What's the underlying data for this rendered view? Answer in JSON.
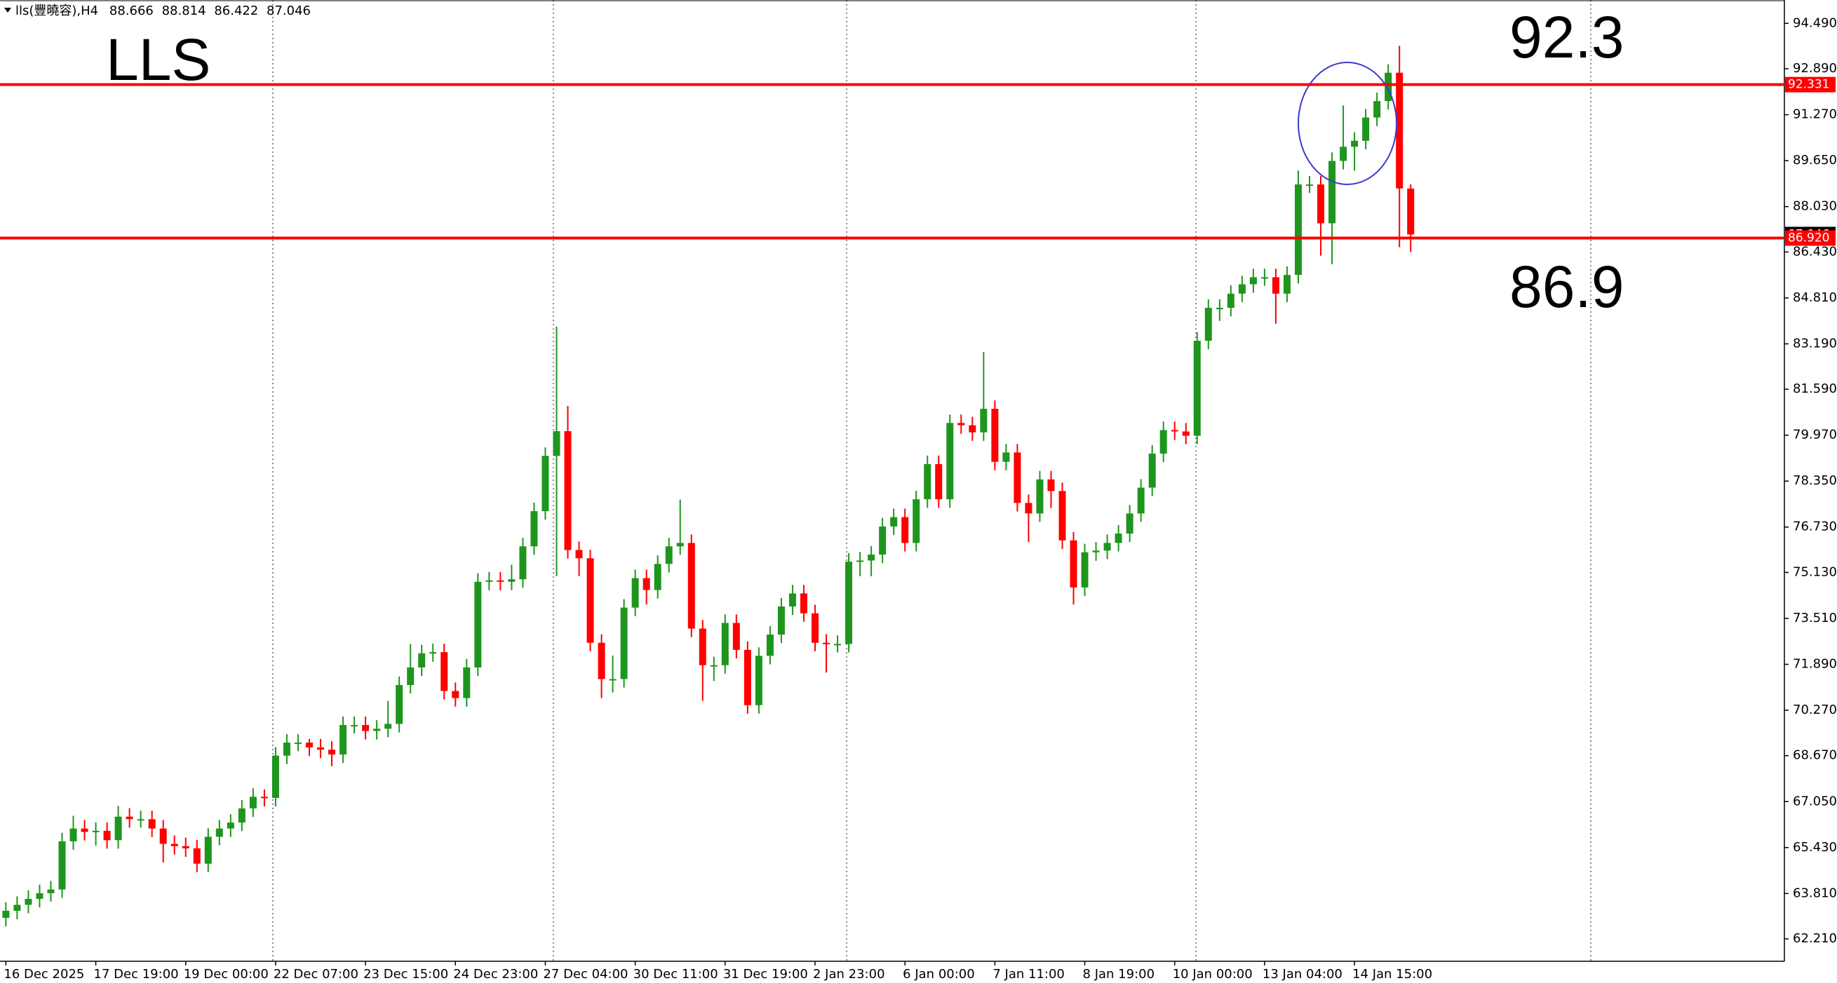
{
  "chart_data": {
    "type": "candlestick",
    "symbol": "lls(豐曉容),H4",
    "title": "LLS",
    "annotations": [
      "92.3",
      "86.9"
    ],
    "up_color": "#1e961e",
    "down_color": "#ff0000",
    "level_color": "#ff0000",
    "ylim": [
      61.42,
      95.24
    ],
    "yticks": [
      {
        "value": 94.49,
        "label": "94.490"
      },
      {
        "value": 92.89,
        "label": "92.890"
      },
      {
        "value": 91.27,
        "label": "91.270"
      },
      {
        "value": 89.65,
        "label": "89.650"
      },
      {
        "value": 88.03,
        "label": "88.030"
      },
      {
        "value": 86.43,
        "label": "86.430"
      },
      {
        "value": 84.81,
        "label": "84.810"
      },
      {
        "value": 83.19,
        "label": "83.190"
      },
      {
        "value": 81.59,
        "label": "81.590"
      },
      {
        "value": 79.97,
        "label": "79.970"
      },
      {
        "value": 78.35,
        "label": "78.350"
      },
      {
        "value": 76.73,
        "label": "76.730"
      },
      {
        "value": 75.13,
        "label": "75.130"
      },
      {
        "value": 73.51,
        "label": "73.510"
      },
      {
        "value": 71.89,
        "label": "71.890"
      },
      {
        "value": 70.27,
        "label": "70.270"
      },
      {
        "value": 68.67,
        "label": "68.670"
      },
      {
        "value": 67.05,
        "label": "67.050"
      },
      {
        "value": 65.43,
        "label": "65.430"
      },
      {
        "value": 63.81,
        "label": "63.810"
      },
      {
        "value": 62.21,
        "label": "62.210"
      }
    ],
    "levels": [
      92.331,
      {
        "value": 86.92,
        "label": "86.920"
      }
    ],
    "categories": [
      "16 Dec 2025",
      null,
      null,
      null,
      null,
      null,
      null,
      null,
      "17 Dec 19:00",
      null,
      null,
      null,
      null,
      null,
      null,
      null,
      "19 Dec 00:00",
      null,
      null,
      null,
      null,
      null,
      null,
      null,
      "22 Dec 07:00",
      null,
      null,
      null,
      null,
      null,
      null,
      null,
      "23 Dec 15:00",
      null,
      null,
      null,
      null,
      null,
      null,
      null,
      "24 Dec 23:00",
      null,
      null,
      null,
      null,
      null,
      null,
      null,
      "27 Dec 04:00",
      null,
      null,
      null,
      null,
      null,
      null,
      null,
      "30 Dec 11:00",
      null,
      null,
      null,
      null,
      null,
      null,
      null,
      "31 Dec 19:00",
      null,
      null,
      null,
      null,
      null,
      null,
      null,
      "2 Jan 23:00",
      null,
      null,
      null,
      null,
      null,
      null,
      null,
      "6 Jan 00:00",
      null,
      null,
      null,
      null,
      null,
      null,
      null,
      "7 Jan 11:00",
      null,
      null,
      null,
      null,
      null,
      null,
      null,
      "8 Jan 19:00",
      null,
      null,
      null,
      null,
      null,
      null,
      null,
      "10 Jan 00:00",
      null,
      null,
      null,
      null,
      null,
      null,
      null,
      "13 Jan 04:00",
      null,
      null,
      null,
      null,
      null,
      null,
      null,
      "14 Jan 15:00",
      null,
      null,
      null,
      null,
      null
    ],
    "open": [
      62.95,
      63.2,
      63.41,
      63.62,
      63.82,
      63.95,
      65.65,
      66.1,
      65.98,
      66.02,
      65.69,
      66.52,
      66.43,
      66.43,
      66.1,
      65.56,
      65.48,
      65.4,
      64.86,
      65.81,
      66.1,
      66.31,
      66.81,
      67.22,
      67.18,
      68.67,
      69.13,
      69.13,
      68.96,
      68.88,
      68.71,
      69.75,
      69.75,
      69.54,
      69.62,
      69.79,
      71.16,
      71.78,
      72.28,
      72.32,
      70.95,
      70.7,
      71.78,
      74.8,
      74.85,
      74.8,
      74.89,
      76.05,
      77.29,
      79.24,
      80.11,
      75.92,
      75.63,
      72.65,
      71.37,
      71.37,
      73.89,
      74.93,
      74.51,
      75.43,
      76.05,
      76.17,
      73.15,
      71.86,
      71.86,
      73.35,
      72.4,
      70.45,
      72.19,
      72.94,
      73.93,
      74.39,
      73.69,
      72.65,
      72.61,
      72.61,
      75.51,
      75.55,
      75.76,
      76.75,
      77.08,
      76.17,
      77.71,
      78.95,
      77.71,
      80.4,
      80.32,
      80.07,
      80.9,
      79.03,
      79.36,
      77.58,
      77.21,
      78.41,
      78.0,
      76.26,
      74.6,
      75.84,
      75.9,
      76.17,
      76.5,
      77.21,
      78.12,
      79.32,
      80.15,
      80.1,
      79.95,
      83.3,
      84.46,
      84.46,
      84.96,
      85.29,
      85.54,
      85.54,
      84.96,
      85.62,
      88.81,
      88.81,
      87.44,
      89.64,
      90.14,
      90.35,
      91.17,
      91.75,
      92.75,
      88.666
    ],
    "high": [
      63.5,
      63.71,
      63.92,
      64.12,
      64.25,
      65.95,
      66.55,
      66.4,
      66.32,
      66.32,
      66.9,
      66.82,
      66.73,
      66.73,
      66.4,
      65.86,
      65.78,
      65.7,
      66.11,
      66.4,
      66.61,
      67.11,
      67.52,
      67.48,
      68.97,
      69.43,
      69.43,
      69.26,
      69.26,
      69.18,
      70.05,
      70.05,
      70.05,
      69.92,
      70.6,
      71.46,
      72.6,
      72.58,
      72.62,
      72.62,
      71.25,
      72.08,
      75.1,
      75.15,
      75.15,
      75.4,
      76.35,
      77.59,
      79.54,
      83.8,
      81.0,
      76.22,
      75.93,
      72.95,
      72.2,
      74.19,
      75.23,
      75.23,
      75.73,
      76.35,
      77.7,
      76.47,
      73.45,
      72.16,
      73.65,
      73.65,
      72.7,
      72.49,
      73.24,
      74.23,
      74.69,
      74.69,
      73.99,
      72.95,
      72.91,
      75.81,
      75.85,
      76.06,
      77.05,
      77.38,
      77.38,
      78.01,
      79.25,
      79.25,
      80.7,
      80.7,
      80.62,
      82.9,
      81.2,
      79.66,
      79.66,
      77.88,
      78.71,
      78.71,
      78.3,
      76.56,
      76.14,
      76.2,
      76.47,
      76.8,
      77.51,
      78.42,
      79.62,
      80.45,
      80.45,
      80.4,
      83.6,
      84.76,
      84.76,
      85.26,
      85.59,
      85.84,
      85.84,
      85.84,
      85.92,
      89.3,
      89.11,
      89.11,
      89.94,
      91.6,
      90.65,
      91.47,
      92.05,
      93.05,
      93.7,
      88.814
    ],
    "low": [
      62.65,
      62.9,
      63.11,
      63.32,
      63.52,
      63.65,
      65.35,
      65.68,
      65.5,
      65.39,
      65.39,
      66.13,
      66.13,
      65.8,
      64.9,
      65.18,
      65.1,
      64.56,
      64.56,
      65.51,
      65.8,
      66.01,
      66.51,
      66.88,
      66.88,
      68.37,
      68.83,
      68.66,
      68.58,
      68.3,
      68.41,
      69.45,
      69.24,
      69.24,
      69.32,
      69.49,
      70.86,
      71.48,
      71.98,
      70.65,
      70.4,
      70.4,
      71.48,
      74.5,
      74.5,
      74.5,
      74.59,
      75.75,
      76.99,
      75.0,
      75.62,
      75.0,
      72.35,
      70.7,
      70.9,
      71.07,
      73.59,
      74.0,
      74.21,
      75.13,
      75.75,
      72.85,
      70.6,
      71.3,
      71.56,
      72.1,
      70.15,
      70.15,
      71.89,
      72.64,
      73.63,
      73.39,
      72.35,
      71.6,
      72.31,
      72.31,
      75.0,
      75.0,
      75.46,
      76.45,
      75.87,
      75.87,
      77.41,
      77.41,
      77.41,
      80.02,
      79.77,
      79.77,
      78.73,
      78.73,
      77.28,
      76.2,
      76.91,
      77.4,
      75.96,
      74.0,
      74.3,
      75.54,
      75.6,
      75.87,
      76.2,
      76.91,
      77.82,
      79.02,
      79.8,
      79.65,
      79.65,
      83.0,
      84.0,
      84.16,
      84.66,
      84.99,
      85.24,
      83.9,
      84.66,
      85.32,
      88.51,
      86.3,
      86.0,
      89.34,
      89.3,
      90.05,
      90.87,
      91.45,
      86.6,
      86.422
    ],
    "close": [
      63.2,
      63.41,
      63.62,
      63.82,
      63.95,
      65.65,
      66.1,
      65.98,
      66.02,
      65.69,
      66.52,
      66.43,
      66.43,
      66.1,
      65.56,
      65.48,
      65.4,
      64.86,
      65.81,
      66.1,
      66.31,
      66.81,
      67.22,
      67.18,
      68.67,
      69.13,
      69.13,
      68.96,
      68.88,
      68.71,
      69.75,
      69.75,
      69.54,
      69.62,
      69.79,
      71.16,
      71.78,
      72.28,
      72.32,
      70.95,
      70.7,
      71.78,
      74.8,
      74.85,
      74.8,
      74.89,
      76.05,
      77.29,
      79.24,
      80.11,
      75.92,
      75.63,
      72.65,
      71.37,
      71.37,
      73.89,
      74.93,
      74.51,
      75.43,
      76.05,
      76.17,
      73.15,
      71.86,
      71.86,
      73.35,
      72.4,
      70.45,
      72.19,
      72.94,
      73.93,
      74.39,
      73.69,
      72.65,
      72.61,
      72.61,
      75.51,
      75.55,
      75.76,
      76.75,
      77.08,
      76.17,
      77.71,
      78.95,
      77.71,
      80.4,
      80.32,
      80.07,
      80.9,
      79.03,
      79.36,
      77.58,
      77.21,
      78.41,
      78.0,
      76.26,
      74.6,
      75.84,
      75.9,
      76.17,
      76.5,
      77.21,
      78.12,
      79.32,
      80.15,
      80.1,
      79.95,
      83.3,
      84.46,
      84.46,
      84.96,
      85.29,
      85.54,
      85.54,
      84.96,
      85.62,
      88.81,
      88.81,
      87.44,
      89.64,
      90.14,
      90.35,
      91.17,
      91.75,
      92.75,
      88.67,
      87.046
    ]
  }
}
